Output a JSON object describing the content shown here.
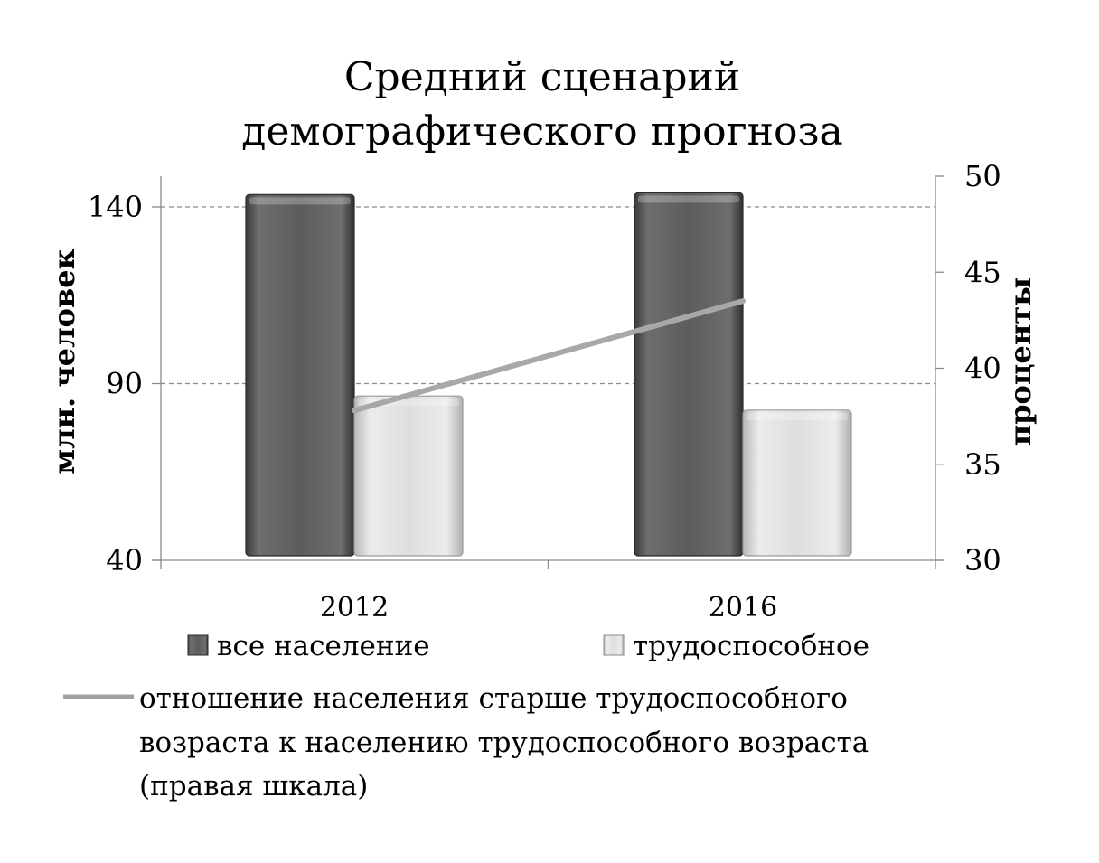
{
  "chart_data": {
    "type": "bar",
    "title_lines": [
      "Средний сценарий",
      "демографического прогноза"
    ],
    "categories": [
      "2012",
      "2016"
    ],
    "series": [
      {
        "name": "все население",
        "axis": "left",
        "kind": "bar",
        "values": [
          143.5,
          144
        ],
        "color": "#5a5a5a"
      },
      {
        "name": "трудоспособное",
        "axis": "left",
        "kind": "bar",
        "values": [
          86.5,
          82.5
        ],
        "color": "#dadada"
      },
      {
        "name": "отношение населения старше трудоспособного возраста к населению трудоспособного возраста (правая шкала)",
        "axis": "right",
        "kind": "line",
        "values": [
          37.8,
          43.5
        ],
        "color": "#a8a8a8"
      }
    ],
    "left_axis": {
      "label": "млн. человек",
      "ylim": [
        40,
        148
      ],
      "ticks": [
        40,
        90,
        140
      ]
    },
    "right_axis": {
      "label": "проценты",
      "ylim": [
        30,
        50
      ],
      "ticks": [
        30,
        35,
        40,
        45,
        50
      ]
    },
    "grid": true,
    "legend_position": "bottom",
    "legend_lines": {
      "bar1": "все население",
      "bar2": "трудоспособное",
      "line": [
        "отношение населения старше трудоспособного",
        "возраста к населению трудоспособного возраста",
        "(правая шкала)"
      ]
    }
  }
}
